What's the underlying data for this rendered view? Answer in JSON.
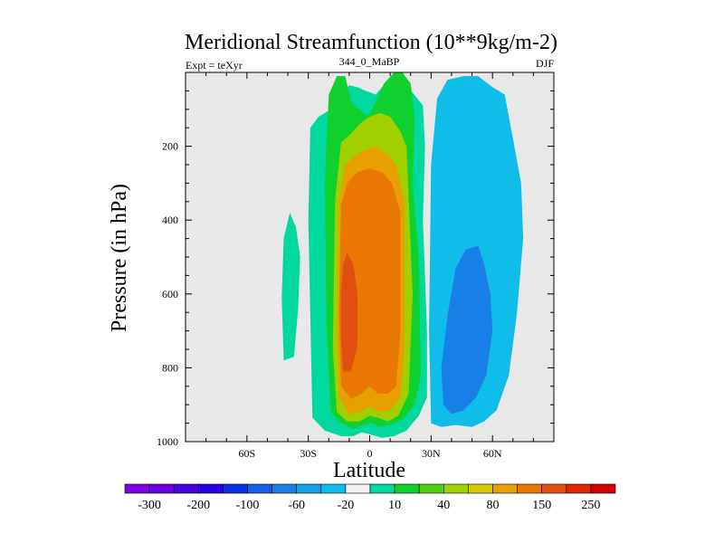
{
  "chart_data": {
    "type": "filled-contour",
    "title": "Meridional Streamfunction (10**9kg/m-2)",
    "subtitle_left": "Expt = teXyr",
    "subtitle_center": "344_0_MaBP",
    "subtitle_right": "DJF",
    "xlabel": "Latitude",
    "ylabel": "Pressure (in hPa)",
    "xlim": [
      -90,
      90
    ],
    "ylim": [
      1000,
      0
    ],
    "x_ticks": [
      {
        "value": -60,
        "label": "60S"
      },
      {
        "value": -30,
        "label": "30S"
      },
      {
        "value": 0,
        "label": "0"
      },
      {
        "value": 30,
        "label": "30N"
      },
      {
        "value": 60,
        "label": "60N"
      }
    ],
    "y_ticks": [
      {
        "value": 200,
        "label": "200"
      },
      {
        "value": 400,
        "label": "400"
      },
      {
        "value": 600,
        "label": "600"
      },
      {
        "value": 800,
        "label": "800"
      },
      {
        "value": 1000,
        "label": "1000"
      }
    ],
    "background_color": "#e8e8e8",
    "colorbar": {
      "colors": [
        "#8000e0",
        "#6a00e0",
        "#4b00e0",
        "#2800e0",
        "#0a30e0",
        "#1660e8",
        "#1a80e8",
        "#15a0e8",
        "#10bce8",
        "#f0f0f0",
        "#00d8a0",
        "#10d030",
        "#50d010",
        "#a0d000",
        "#d8c800",
        "#e8a000",
        "#e87800",
        "#e05010",
        "#e02800",
        "#d00000"
      ],
      "labels": [
        "-300",
        "-200",
        "-100",
        "-60",
        "-20",
        "10",
        "40",
        "80",
        "150",
        "250"
      ]
    },
    "contours": [
      {
        "level": "-20",
        "color": "#10bce8",
        "x": [
          -24,
          -20,
          -18,
          -19,
          -23,
          -26,
          -25
        ],
        "y": [
          430,
          410,
          260,
          180,
          170,
          230,
          380
        ]
      },
      {
        "level": "10",
        "color": "#00d8a0",
        "x": [
          -42,
          -37,
          -35,
          -34,
          -36,
          -39,
          -42,
          -43
        ],
        "y": [
          780,
          770,
          640,
          500,
          420,
          380,
          450,
          610
        ]
      },
      {
        "level": "-20",
        "color": "#10bce8",
        "x": [
          30,
          35,
          42,
          50,
          56,
          62,
          68,
          72,
          75,
          74,
          70,
          66,
          60,
          53,
          46,
          38,
          33,
          30,
          29
        ],
        "y": [
          950,
          960,
          955,
          960,
          945,
          915,
          820,
          650,
          450,
          300,
          180,
          60,
          40,
          10,
          10,
          20,
          70,
          250,
          700
        ]
      },
      {
        "level": "-60",
        "color": "#1a80e8",
        "x": [
          36,
          40,
          46,
          52,
          57,
          60,
          59,
          56,
          53,
          47,
          42,
          38,
          35
        ],
        "y": [
          900,
          925,
          915,
          880,
          820,
          700,
          600,
          520,
          470,
          480,
          530,
          660,
          800
        ]
      },
      {
        "level": "10",
        "color": "#00d8a0",
        "x": [
          -28,
          -22,
          -14,
          -8,
          -4,
          0,
          6,
          12,
          18,
          24,
          28,
          28,
          26,
          27,
          26,
          21,
          16,
          11,
          6,
          3,
          -2,
          -6,
          -10,
          -13,
          -19,
          -25,
          -29,
          -30
        ],
        "y": [
          935,
          970,
          985,
          985,
          975,
          980,
          990,
          985,
          970,
          930,
          880,
          700,
          400,
          200,
          90,
          55,
          30,
          25,
          40,
          60,
          50,
          40,
          35,
          55,
          100,
          120,
          150,
          400
        ]
      },
      {
        "level": "40",
        "color": "#10d030",
        "x": [
          -19,
          -14,
          -8,
          -3,
          1,
          5,
          10,
          16,
          22,
          25,
          24,
          21,
          22,
          20,
          16,
          12,
          7,
          3,
          -1,
          -5,
          -9,
          -12,
          -16,
          -20,
          -22,
          -21
        ],
        "y": [
          920,
          950,
          965,
          955,
          950,
          960,
          955,
          940,
          900,
          820,
          500,
          300,
          120,
          30,
          0,
          0,
          30,
          80,
          120,
          100,
          80,
          10,
          10,
          60,
          300,
          700
        ]
      },
      {
        "level": "80",
        "color": "#a0d000",
        "x": [
          -16,
          -11,
          -5,
          0,
          4,
          9,
          14,
          19,
          21,
          18,
          15,
          10,
          5,
          0,
          -5,
          -10,
          -14,
          -17,
          -18
        ],
        "y": [
          920,
          945,
          945,
          930,
          935,
          945,
          930,
          870,
          600,
          200,
          160,
          120,
          110,
          120,
          140,
          170,
          190,
          350,
          750
        ]
      },
      {
        "level": "150",
        "color": "#e8a000",
        "x": [
          -15,
          -10,
          -5,
          0,
          5,
          10,
          15,
          17,
          17,
          13,
          8,
          3,
          -2,
          -7,
          -12,
          -15,
          -16
        ],
        "y": [
          880,
          925,
          920,
          905,
          920,
          915,
          880,
          750,
          350,
          250,
          220,
          200,
          210,
          225,
          250,
          350,
          700
        ]
      },
      {
        "level": "150",
        "color": "#e87800",
        "x": [
          -14,
          -9,
          -4,
          0,
          4,
          9,
          13,
          15,
          15,
          11,
          6,
          0,
          -6,
          -11,
          -14,
          -15
        ],
        "y": [
          850,
          885,
          870,
          850,
          870,
          870,
          850,
          700,
          380,
          300,
          270,
          260,
          270,
          300,
          360,
          650
        ]
      },
      {
        "level": "250",
        "color": "#e05010",
        "x": [
          -13,
          -9,
          -6,
          -6,
          -8,
          -11,
          -13,
          -14,
          -14
        ],
        "y": [
          810,
          810,
          740,
          600,
          520,
          490,
          520,
          600,
          720
        ]
      }
    ]
  }
}
